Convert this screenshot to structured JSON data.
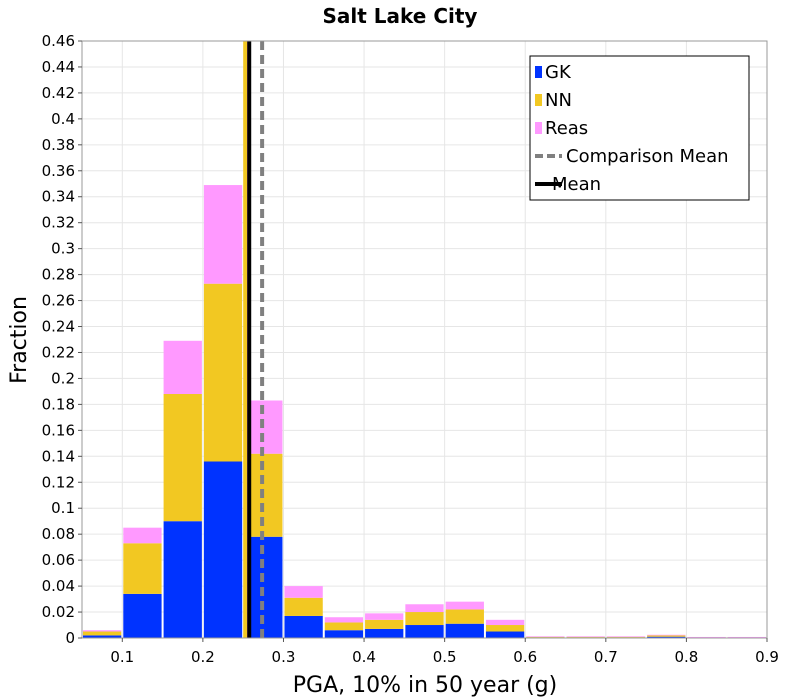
{
  "chart_data": {
    "type": "bar",
    "stacked": true,
    "title": "Salt Lake City",
    "xlabel": "PGA, 10% in 50 year (g)",
    "ylabel": "Fraction",
    "xlim": [
      0.05,
      0.9
    ],
    "ylim": [
      0,
      0.46
    ],
    "xticks": [
      "0.1",
      "0.2",
      "0.3",
      "0.4",
      "0.5",
      "0.6",
      "0.7",
      "0.8",
      "0.9"
    ],
    "yticks": [
      "0",
      "0.02",
      "0.04",
      "0.06",
      "0.08",
      "0.1",
      "0.12",
      "0.14",
      "0.16",
      "0.18",
      "0.2",
      "0.22",
      "0.24",
      "0.26",
      "0.28",
      "0.3",
      "0.32",
      "0.34",
      "0.36",
      "0.38",
      "0.4",
      "0.42",
      "0.44",
      "0.46"
    ],
    "bin_width": 0.05,
    "bin_centers": [
      0.075,
      0.125,
      0.175,
      0.225,
      0.275,
      0.325,
      0.375,
      0.425,
      0.475,
      0.525,
      0.575,
      0.625,
      0.675,
      0.725,
      0.775,
      0.825,
      0.875
    ],
    "series": [
      {
        "name": "GK",
        "color": "#0033ff",
        "values": [
          0.002,
          0.034,
          0.09,
          0.136,
          0.078,
          0.017,
          0.006,
          0.007,
          0.01,
          0.011,
          0.005,
          0.0005,
          0.0005,
          0.0005,
          0.001,
          0.0003,
          0.0003
        ]
      },
      {
        "name": "NN",
        "color": "#f2c822",
        "values": [
          0.003,
          0.039,
          0.098,
          0.137,
          0.064,
          0.014,
          0.006,
          0.007,
          0.01,
          0.011,
          0.005,
          0.0005,
          0.0005,
          0.0005,
          0.001,
          0.0003,
          0.0003
        ]
      },
      {
        "name": "Reas",
        "color": "#ff99ff",
        "values": [
          0.001,
          0.012,
          0.041,
          0.076,
          0.041,
          0.009,
          0.004,
          0.005,
          0.006,
          0.006,
          0.004,
          0.0003,
          0.0003,
          0.0003,
          0.0005,
          0.0002,
          0.0002
        ]
      }
    ],
    "vlines": [
      {
        "name": "Reas",
        "x": 0.2565,
        "color": "#ff66ff",
        "style": "solid"
      },
      {
        "name": "NN",
        "x": 0.2525,
        "color": "#f2c822",
        "style": "solid"
      },
      {
        "name": "Comparison Mean",
        "x": 0.2735,
        "color": "#808080",
        "style": "dashed"
      },
      {
        "name": "Mean",
        "x": 0.2575,
        "color": "#000000",
        "style": "solid"
      }
    ],
    "legend": {
      "placement": "top-right",
      "entries": [
        {
          "label": "GK",
          "marker": "square",
          "color": "#0033ff"
        },
        {
          "label": "NN",
          "marker": "square",
          "color": "#f2c822"
        },
        {
          "label": "Reas",
          "marker": "square",
          "color": "#ff99ff"
        },
        {
          "label": "Comparison Mean",
          "marker": "dashed-line",
          "color": "#808080"
        },
        {
          "label": "Mean",
          "marker": "solid-line",
          "color": "#000000"
        }
      ]
    },
    "grid": true
  }
}
